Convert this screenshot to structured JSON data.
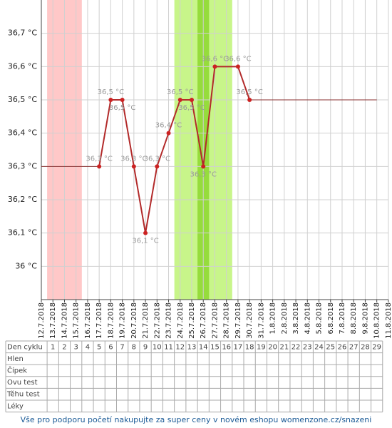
{
  "chart_data": {
    "type": "line",
    "categories": [
      "12.7.2018",
      "13.7.2018",
      "14.7.2018",
      "15.7.2018",
      "16.7.2018",
      "17.7.2018",
      "18.7.2018",
      "19.7.2018",
      "20.7.2018",
      "21.7.2018",
      "22.7.2018",
      "23.7.2018",
      "24.7.2018",
      "25.7.2018",
      "26.7.2018",
      "27.7.2018",
      "28.7.2018",
      "29.7.2018",
      "30.7.2018",
      "31.7.2018",
      "1.8.2018",
      "2.8.2018",
      "3.8.2018",
      "4.8.2018",
      "5.8.2018",
      "6.8.2018",
      "7.8.2018",
      "8.8.2018",
      "9.8.2018",
      "10.8.2018",
      "11.8.2018"
    ],
    "series": [
      {
        "color": "#b22a2a",
        "x": [
          "17.7.2018",
          "18.7.2018",
          "19.7.2018",
          "20.7.2018",
          "21.7.2018",
          "22.7.2018",
          "23.7.2018",
          "24.7.2018",
          "25.7.2018",
          "26.7.2018",
          "27.7.2018",
          "29.7.2018",
          "30.7.2018"
        ],
        "values": [
          36.3,
          36.5,
          36.5,
          36.3,
          36.1,
          36.3,
          36.4,
          36.5,
          36.5,
          36.3,
          36.6,
          36.6,
          36.5
        ],
        "value_labels": [
          "36,3 °C",
          "36,5 °C",
          "36,5 °C",
          "36,3 °C",
          "36,1 °C",
          "36,3 °C",
          "36,4 °C",
          "36,5 °C",
          "36,5 °C",
          "36,3 °C",
          "36,6 °C",
          "36,6 °C",
          "36,5 °C"
        ]
      }
    ],
    "guide_lines": [
      {
        "from": "12.7.2018",
        "to": "17.7.2018",
        "value": 36.3,
        "color": "#8a3030"
      },
      {
        "from": "30.7.2018",
        "to": "10.8.2018",
        "value": 36.5,
        "color": "#8a3030"
      }
    ],
    "bands": [
      {
        "from": "13.7.2018",
        "to": "15.7.2018",
        "color": "#ffc8c8"
      },
      {
        "from": "24.7.2018",
        "to": "28.7.2018",
        "color": "#c8f58a"
      },
      {
        "from": "26.7.2018",
        "to": "26.7.2018",
        "color": "#96dc3c"
      }
    ],
    "ylim": [
      35.9,
      36.8
    ],
    "yticks": [
      {
        "value": 36,
        "label": "36 °C"
      },
      {
        "value": 36.1,
        "label": "36,1 °C"
      },
      {
        "value": 36.2,
        "label": "36,2 °C"
      },
      {
        "value": 36.3,
        "label": "36,3 °C"
      },
      {
        "value": 36.4,
        "label": "36,4 °C"
      },
      {
        "value": 36.5,
        "label": "36,5 °C"
      },
      {
        "value": 36.6,
        "label": "36,6 °C"
      },
      {
        "value": 36.7,
        "label": "36,7 °C"
      }
    ],
    "grid": true
  },
  "table": {
    "row_labels": [
      "Den cyklu",
      "Hlen",
      "Čípek",
      "Ovu test",
      "Těhu test",
      "Léky"
    ],
    "cycle_days": [
      1,
      2,
      3,
      4,
      5,
      6,
      7,
      8,
      9,
      10,
      11,
      12,
      13,
      14,
      15,
      16,
      17,
      18,
      19,
      20,
      21,
      22,
      23,
      24,
      25,
      26,
      27,
      28,
      29
    ]
  },
  "footer": "Vše pro podporu početí nakupujte za super ceny v novém eshopu womenzone.cz/snazeni"
}
